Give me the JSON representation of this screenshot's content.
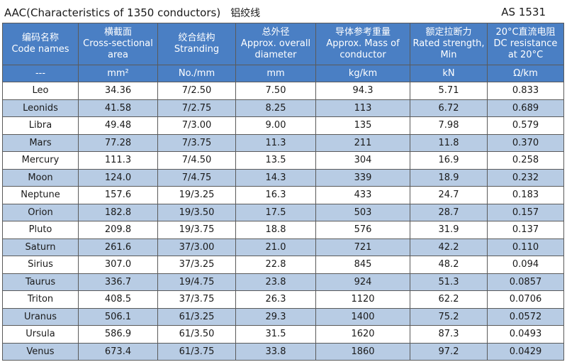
{
  "title": "AAC(Characteristics of 1350 conductors)",
  "title_cn": "铝绞线",
  "standard": "AS 1531",
  "colors": {
    "header_bg": "#4a7fc4",
    "band_bg": "#b8cce4",
    "border": "#5a5a5a"
  },
  "headers": [
    {
      "cn": "编码名称",
      "en": "Code names"
    },
    {
      "cn": "横截面",
      "en": "Cross-sectional area"
    },
    {
      "cn": "绞合结构",
      "en": "Stranding"
    },
    {
      "cn": "总外径",
      "en": "Approx. overall diameter"
    },
    {
      "cn": "导体参考重量",
      "en": "Approx. Mass of conductor"
    },
    {
      "cn": "额定拉断力",
      "en": "Rated strength, Min"
    },
    {
      "cn": "20°C直流电阻",
      "en": "DC resistance at 20°C"
    }
  ],
  "units": [
    "---",
    "mm²",
    "No./mm",
    "mm",
    "kg/km",
    "kN",
    "Ω/km"
  ],
  "rows": [
    [
      "Leo",
      "34.36",
      "7/2.50",
      "7.50",
      "94.3",
      "5.71",
      "0.833"
    ],
    [
      "Leonids",
      "41.58",
      "7/2.75",
      "8.25",
      "113",
      "6.72",
      "0.689"
    ],
    [
      "Libra",
      "49.48",
      "7/3.00",
      "9.00",
      "135",
      "7.98",
      "0.579"
    ],
    [
      "Mars",
      "77.28",
      "7/3.75",
      "11.3",
      "211",
      "11.8",
      "0.370"
    ],
    [
      "Mercury",
      "111.3",
      "7/4.50",
      "13.5",
      "304",
      "16.9",
      "0.258"
    ],
    [
      "Moon",
      "124.0",
      "7/4.75",
      "14.3",
      "339",
      "18.9",
      "0.232"
    ],
    [
      "Neptune",
      "157.6",
      "19/3.25",
      "16.3",
      "433",
      "24.7",
      "0.183"
    ],
    [
      "Orion",
      "182.8",
      "19/3.50",
      "17.5",
      "503",
      "28.7",
      "0.157"
    ],
    [
      "Pluto",
      "209.8",
      "19/3.75",
      "18.8",
      "576",
      "31.9",
      "0.137"
    ],
    [
      "Saturn",
      "261.6",
      "37/3.00",
      "21.0",
      "721",
      "42.2",
      "0.110"
    ],
    [
      "Sirius",
      "307.0",
      "37/3.25",
      "22.8",
      "845",
      "48.2",
      "0.094"
    ],
    [
      "Taurus",
      "336.7",
      "19/4.75",
      "23.8",
      "924",
      "51.3",
      "0.0857"
    ],
    [
      "Triton",
      "408.5",
      "37/3.75",
      "26.3",
      "1120",
      "62.2",
      "0.0706"
    ],
    [
      "Uranus",
      "506.1",
      "61/3.25",
      "29.3",
      "1400",
      "75.2",
      "0.0572"
    ],
    [
      "Ursula",
      "586.9",
      "61/3.50",
      "31.5",
      "1620",
      "87.3",
      "0.0493"
    ],
    [
      "Venus",
      "673.4",
      "61/3.75",
      "33.8",
      "1860",
      "97.2",
      "0.0429"
    ]
  ]
}
